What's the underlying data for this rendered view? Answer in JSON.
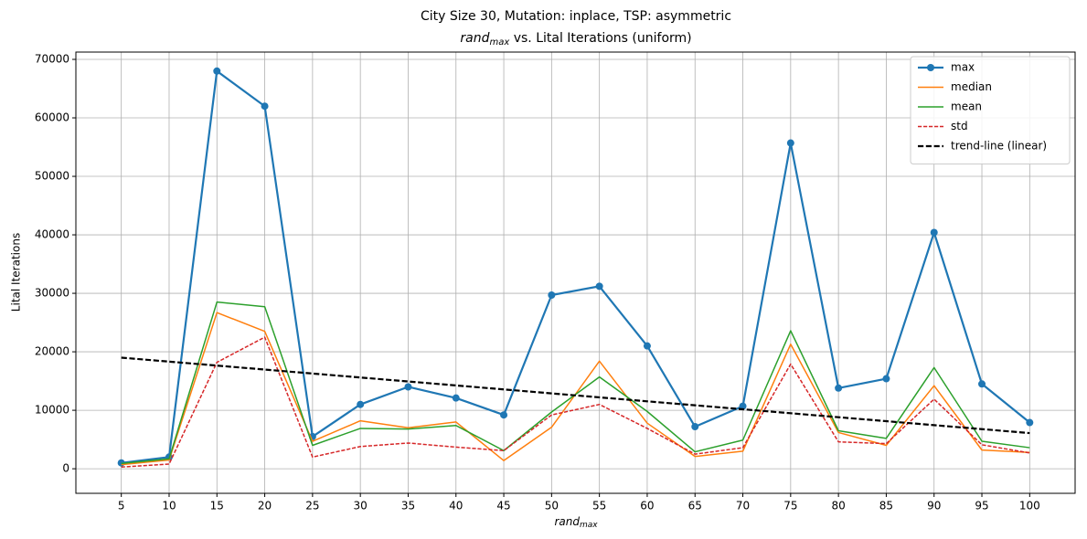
{
  "chart_data": {
    "type": "line",
    "title": "City Size 30, Mutation: inplace, TSP: asymmetric",
    "subtitle": {
      "base": "rand",
      "sub": "max",
      "rest": " vs. Lital Iterations (uniform)"
    },
    "xlabel": {
      "base": "rand",
      "sub": "max"
    },
    "ylabel": "Lital Iterations",
    "x": [
      5,
      10,
      15,
      20,
      25,
      30,
      35,
      40,
      45,
      50,
      55,
      60,
      65,
      70,
      75,
      80,
      85,
      90,
      95,
      100
    ],
    "series": [
      {
        "name": "max",
        "color": "#1f77b4",
        "linewidth": 2.2,
        "marker": "o",
        "linestyle": "solid",
        "values": [
          1000,
          2000,
          68000,
          62000,
          5500,
          11000,
          14000,
          12100,
          9200,
          29700,
          31200,
          21000,
          7200,
          10700,
          55700,
          13800,
          15400,
          40400,
          14500,
          7900
        ]
      },
      {
        "name": "median",
        "color": "#ff7f0e",
        "linewidth": 1.5,
        "linestyle": "solid",
        "values": [
          700,
          1500,
          26700,
          23500,
          4700,
          8200,
          7000,
          8000,
          1400,
          7100,
          18400,
          7800,
          2100,
          3000,
          21300,
          6200,
          4000,
          14200,
          3200,
          2800
        ]
      },
      {
        "name": "mean",
        "color": "#2ca02c",
        "linewidth": 1.5,
        "linestyle": "solid",
        "values": [
          900,
          1700,
          28500,
          27700,
          4000,
          6900,
          6800,
          7400,
          3100,
          9700,
          15700,
          9800,
          2900,
          4900,
          23600,
          6500,
          5200,
          17300,
          4700,
          3600
        ]
      },
      {
        "name": "std",
        "color": "#d62728",
        "linewidth": 1.5,
        "linestyle": "dashed",
        "values": [
          300,
          800,
          18200,
          22500,
          2000,
          3800,
          4400,
          3700,
          3100,
          9200,
          11000,
          6900,
          2500,
          3600,
          17900,
          4600,
          4300,
          11900,
          4100,
          2700
        ]
      },
      {
        "name": "trend-line (linear)",
        "color": "#000000",
        "linewidth": 2.2,
        "linestyle": "dashed",
        "values": [
          19000,
          18321,
          17642,
          16963,
          16284,
          15605,
          14926,
          14247,
          13568,
          12889,
          12210,
          11531,
          10852,
          10173,
          9494,
          8815,
          8136,
          7457,
          6778,
          6099
        ]
      }
    ],
    "xlim": [
      0.25,
      104.75
    ],
    "ylim": [
      -4200,
      71250
    ],
    "xticks": [
      5,
      10,
      15,
      20,
      25,
      30,
      35,
      40,
      45,
      50,
      55,
      60,
      65,
      70,
      75,
      80,
      85,
      90,
      95,
      100
    ],
    "yticks": [
      0,
      10000,
      20000,
      30000,
      40000,
      50000,
      60000,
      70000
    ],
    "grid": true,
    "legend": "upper right"
  }
}
